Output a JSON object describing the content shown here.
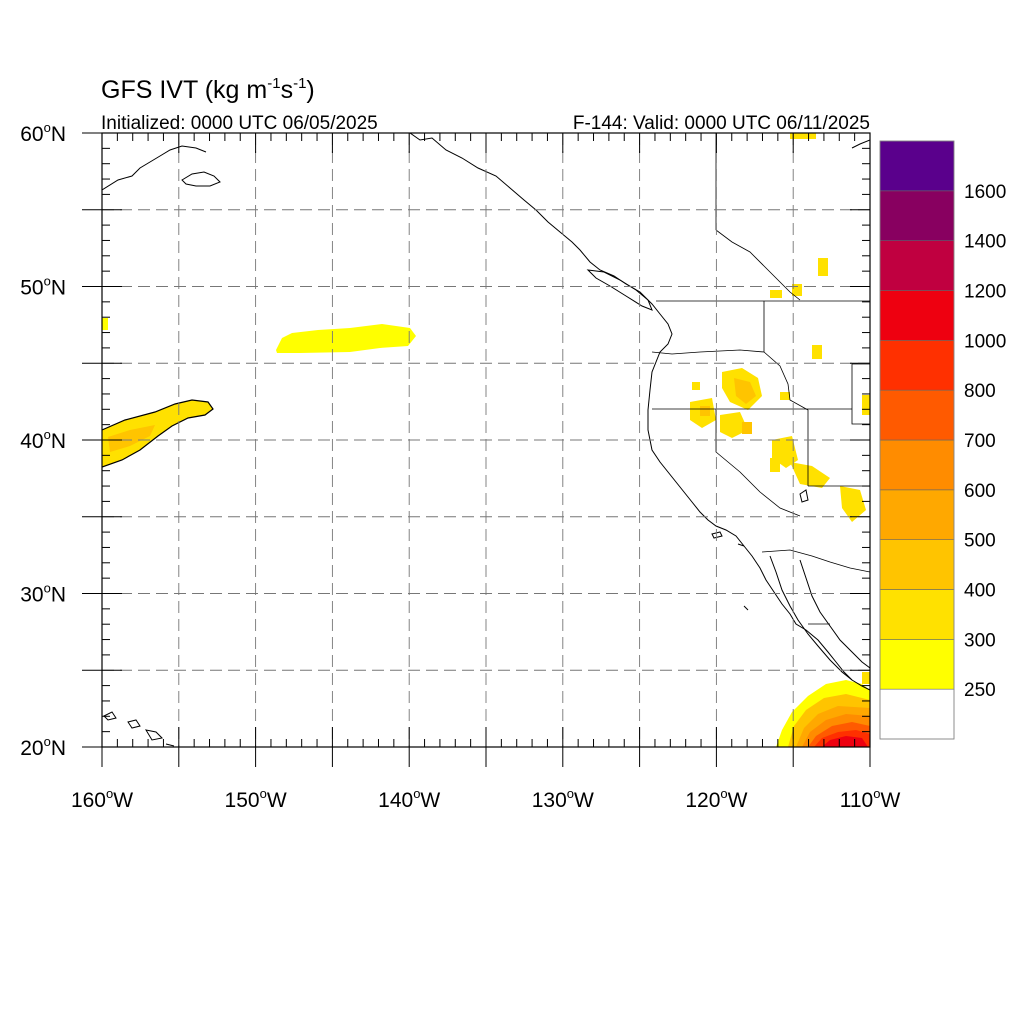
{
  "header": {
    "title_prefix": "GFS IVT (kg m",
    "title_exp1": "-1",
    "title_mid": "s",
    "title_exp2": "-1",
    "title_suffix": ")",
    "initialized": "Initialized: 0000 UTC 06/05/2025",
    "valid": "F-144: Valid: 0000 UTC 06/11/2025"
  },
  "map": {
    "projection": "cylindrical equidistant",
    "lon_range": [
      -160,
      -110
    ],
    "lat_range": [
      20,
      60
    ],
    "gridlines": "dashed",
    "lat_labels": [
      {
        "value": 60,
        "num": "60",
        "deg": "o",
        "hemi": "N"
      },
      {
        "value": 50,
        "num": "50",
        "deg": "o",
        "hemi": "N"
      },
      {
        "value": 40,
        "num": "40",
        "deg": "o",
        "hemi": "N"
      },
      {
        "value": 30,
        "num": "30",
        "deg": "o",
        "hemi": "N"
      },
      {
        "value": 20,
        "num": "20",
        "deg": "o",
        "hemi": "N"
      }
    ],
    "lon_labels": [
      {
        "value": -160,
        "num": "160",
        "deg": "o",
        "hemi": "W"
      },
      {
        "value": -150,
        "num": "150",
        "deg": "o",
        "hemi": "W"
      },
      {
        "value": -140,
        "num": "140",
        "deg": "o",
        "hemi": "W"
      },
      {
        "value": -130,
        "num": "130",
        "deg": "o",
        "hemi": "W"
      },
      {
        "value": -120,
        "num": "120",
        "deg": "o",
        "hemi": "W"
      },
      {
        "value": -110,
        "num": "110",
        "deg": "o",
        "hemi": "W"
      }
    ],
    "colors": {
      "250": "#ffff00",
      "300": "#ffe100",
      "400": "#ffc400",
      "500": "#ffa800",
      "600": "#ff8c00",
      "700": "#ff5a00",
      "800": "#ff3000",
      "1000": "#ee0010",
      "1200": "#c00040",
      "1400": "#880060",
      "1600": "#5a008c"
    },
    "ivt_features": [
      {
        "region": "central Pacific plume",
        "level": "250-300"
      },
      {
        "region": "Gulf of Alaska streak",
        "level": "250-300"
      },
      {
        "region": "Great Basin / Intermountain West",
        "level": "250-400"
      },
      {
        "region": "off Baja California / western Mexico",
        "level": "250-1200"
      }
    ]
  },
  "colorbar": {
    "colors": [
      "#ffffff",
      "#ffff00",
      "#ffe100",
      "#ffc400",
      "#ffa800",
      "#ff8c00",
      "#ff5a00",
      "#ff3000",
      "#ee0010",
      "#c00040",
      "#880060",
      "#5a008c"
    ],
    "labels": [
      "250",
      "300",
      "400",
      "500",
      "600",
      "700",
      "800",
      "1000",
      "1200",
      "1400",
      "1600"
    ]
  }
}
